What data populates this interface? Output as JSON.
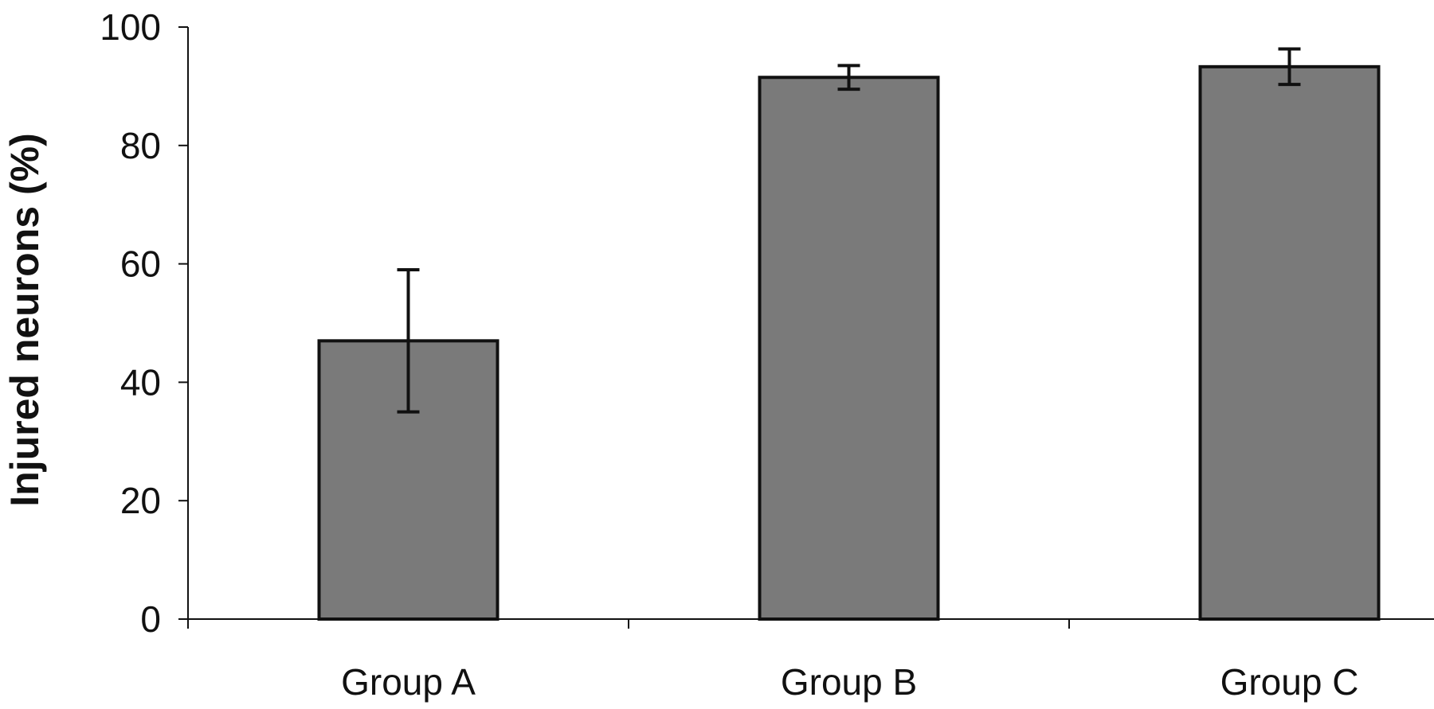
{
  "chart_data": {
    "type": "bar",
    "categories": [
      "Group A",
      "Group B",
      "Group C"
    ],
    "values": [
      47,
      91.5,
      93.3
    ],
    "error": [
      12,
      2,
      3
    ],
    "ylabel": "Injured neurons (%)",
    "xlabel": "",
    "ylim": [
      0,
      100
    ],
    "yticks": [
      0,
      20,
      40,
      60,
      80,
      100
    ],
    "grid": false,
    "legend": "none",
    "bar_color": "#7a7a7a"
  }
}
